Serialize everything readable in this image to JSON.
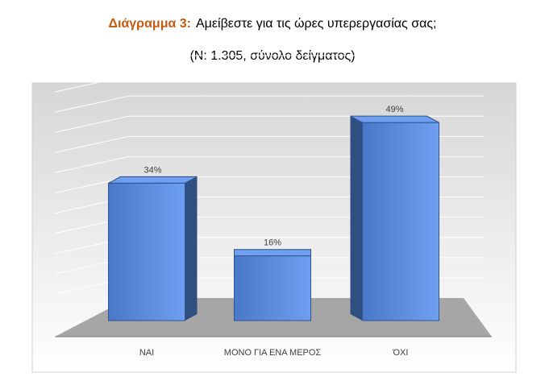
{
  "chart_data": {
    "type": "bar3d",
    "title_prefix": "Διάγραμμα 3:",
    "title": "Αμείβεστε για τις ώρες υπερεργασίας σας;",
    "subtitle": "(N: 1.305, σύνολο δείγματος)",
    "categories": [
      "ΝΑΙ",
      "ΜΟΝΟ ΓΙΑ ΕΝΑ ΜΕΡΟΣ",
      "ΌΧΙ"
    ],
    "values": [
      34,
      16,
      49
    ],
    "value_labels": [
      "34%",
      "16%",
      "49%"
    ],
    "color": "#5b8ee0",
    "ylim": [
      0,
      60
    ],
    "grid": true
  }
}
